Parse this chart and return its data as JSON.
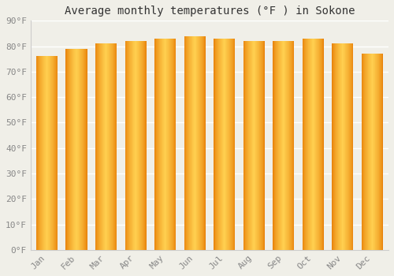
{
  "title": "Average monthly temperatures (°F ) in Sokone",
  "months": [
    "Jan",
    "Feb",
    "Mar",
    "Apr",
    "May",
    "Jun",
    "Jul",
    "Aug",
    "Sep",
    "Oct",
    "Nov",
    "Dec"
  ],
  "values": [
    76,
    79,
    81,
    82,
    83,
    84,
    83,
    82,
    82,
    83,
    81,
    77
  ],
  "ylim": [
    0,
    90
  ],
  "yticks": [
    0,
    10,
    20,
    30,
    40,
    50,
    60,
    70,
    80,
    90
  ],
  "ytick_labels": [
    "0°F",
    "10°F",
    "20°F",
    "30°F",
    "40°F",
    "50°F",
    "60°F",
    "70°F",
    "80°F",
    "90°F"
  ],
  "bg_color": "#f0efe8",
  "grid_color": "#ffffff",
  "bar_edge_color": "#E8820A",
  "bar_center_color": "#FFD050",
  "title_fontsize": 10,
  "tick_fontsize": 8,
  "font_family": "monospace",
  "bar_width": 0.72
}
